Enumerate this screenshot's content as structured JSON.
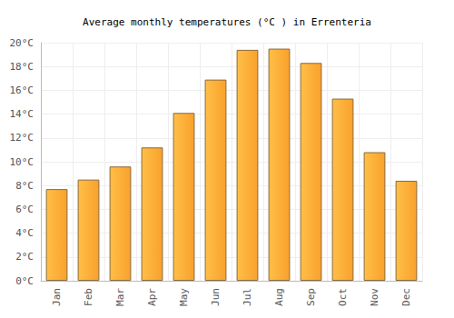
{
  "chart_data": {
    "type": "bar",
    "title": "Average monthly temperatures (°C ) in Errenteria",
    "categories": [
      "Jan",
      "Feb",
      "Mar",
      "Apr",
      "May",
      "Jun",
      "Jul",
      "Aug",
      "Sep",
      "Oct",
      "Nov",
      "Dec"
    ],
    "values": [
      7.7,
      8.5,
      9.6,
      11.2,
      14.1,
      16.9,
      19.4,
      19.5,
      18.3,
      15.3,
      10.8,
      8.4
    ],
    "color": "#f9a12c",
    "ylim": [
      0,
      20
    ],
    "yticks": [
      {
        "value": 0,
        "label": "0°C"
      },
      {
        "value": 2,
        "label": "2°C"
      },
      {
        "value": 4,
        "label": "4°C"
      },
      {
        "value": 6,
        "label": "6°C"
      },
      {
        "value": 8,
        "label": "8°C"
      },
      {
        "value": 10,
        "label": "10°C"
      },
      {
        "value": 12,
        "label": "12°C"
      },
      {
        "value": 14,
        "label": "14°C"
      },
      {
        "value": 16,
        "label": "16°C"
      },
      {
        "value": 18,
        "label": "18°C"
      },
      {
        "value": 20,
        "label": "20°C"
      }
    ],
    "grid": true
  }
}
